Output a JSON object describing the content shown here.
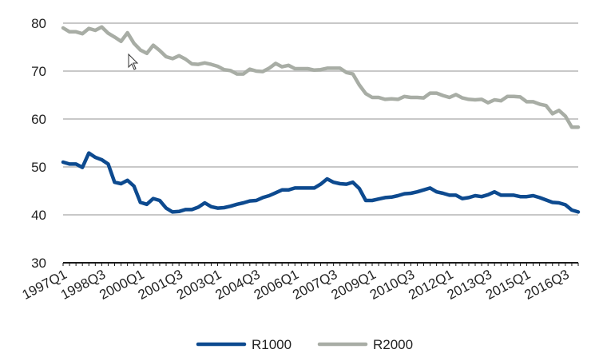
{
  "chart_data": {
    "type": "line",
    "title": "",
    "xlabel": "",
    "ylabel": "",
    "ylim": [
      30,
      80
    ],
    "yticks": [
      30,
      40,
      50,
      60,
      70,
      80
    ],
    "grid": true,
    "legend_position": "bottom",
    "x": [
      "1997Q1",
      "1997Q2",
      "1997Q3",
      "1997Q4",
      "1998Q1",
      "1998Q2",
      "1998Q3",
      "1998Q4",
      "1999Q1",
      "1999Q2",
      "1999Q3",
      "1999Q4",
      "2000Q1",
      "2000Q2",
      "2000Q3",
      "2000Q4",
      "2001Q1",
      "2001Q2",
      "2001Q3",
      "2001Q4",
      "2002Q1",
      "2002Q2",
      "2002Q3",
      "2002Q4",
      "2003Q1",
      "2003Q2",
      "2003Q3",
      "2003Q4",
      "2004Q1",
      "2004Q2",
      "2004Q3",
      "2004Q4",
      "2005Q1",
      "2005Q2",
      "2005Q3",
      "2005Q4",
      "2006Q1",
      "2006Q2",
      "2006Q3",
      "2006Q4",
      "2007Q1",
      "2007Q2",
      "2007Q3",
      "2007Q4",
      "2008Q1",
      "2008Q2",
      "2008Q3",
      "2008Q4",
      "2009Q1",
      "2009Q2",
      "2009Q3",
      "2009Q4",
      "2010Q1",
      "2010Q2",
      "2010Q3",
      "2010Q4",
      "2011Q1",
      "2011Q2",
      "2011Q3",
      "2011Q4",
      "2012Q1",
      "2012Q2",
      "2012Q3",
      "2012Q4",
      "2013Q1",
      "2013Q2",
      "2013Q3",
      "2013Q4",
      "2014Q1",
      "2014Q2",
      "2014Q3",
      "2014Q4",
      "2015Q1",
      "2015Q2",
      "2015Q3",
      "2015Q4",
      "2016Q1",
      "2016Q2",
      "2016Q3",
      "2016Q4",
      "2017Q1"
    ],
    "x_tick_labels": [
      "1997Q1",
      "1998Q3",
      "2000Q1",
      "2001Q3",
      "2003Q1",
      "2004Q3",
      "2006Q1",
      "2007Q3",
      "2009Q1",
      "2010Q3",
      "2012Q1",
      "2013Q3",
      "2015Q1",
      "2016Q3"
    ],
    "series": [
      {
        "name": "R1000",
        "color": "#0d4a8f",
        "values": [
          51.0,
          50.6,
          50.6,
          49.9,
          52.9,
          52.0,
          51.5,
          50.6,
          46.8,
          46.5,
          47.2,
          46.0,
          42.6,
          42.2,
          43.4,
          43.0,
          41.4,
          40.6,
          40.7,
          41.1,
          41.1,
          41.6,
          42.5,
          41.7,
          41.4,
          41.5,
          41.8,
          42.2,
          42.5,
          42.9,
          43.0,
          43.6,
          44.0,
          44.6,
          45.2,
          45.2,
          45.6,
          45.6,
          45.6,
          45.6,
          46.4,
          47.5,
          46.8,
          46.5,
          46.4,
          46.8,
          45.5,
          43.0,
          43.0,
          43.3,
          43.6,
          43.7,
          44.0,
          44.4,
          44.5,
          44.8,
          45.2,
          45.6,
          44.8,
          44.5,
          44.1,
          44.1,
          43.4,
          43.6,
          44.0,
          43.8,
          44.2,
          44.8,
          44.1,
          44.1,
          44.1,
          43.8,
          43.8,
          44.0,
          43.6,
          43.1,
          42.6,
          42.5,
          42.1,
          41.0,
          40.6
        ]
      },
      {
        "name": "R2000",
        "color": "#a8ada5",
        "values": [
          79.0,
          78.2,
          78.2,
          77.8,
          78.9,
          78.5,
          79.2,
          77.9,
          77.1,
          76.2,
          78.0,
          75.8,
          74.4,
          73.7,
          75.4,
          74.3,
          73.0,
          72.6,
          73.2,
          72.5,
          71.5,
          71.4,
          71.7,
          71.4,
          71.0,
          70.3,
          70.1,
          69.4,
          69.4,
          70.4,
          70.0,
          69.9,
          70.6,
          71.6,
          70.9,
          71.2,
          70.5,
          70.5,
          70.5,
          70.2,
          70.3,
          70.6,
          70.6,
          70.6,
          69.7,
          69.4,
          67.1,
          65.3,
          64.5,
          64.5,
          64.1,
          64.2,
          64.1,
          64.7,
          64.5,
          64.5,
          64.4,
          65.4,
          65.4,
          64.9,
          64.5,
          65.1,
          64.4,
          64.1,
          64.0,
          64.1,
          63.4,
          64.0,
          63.8,
          64.7,
          64.7,
          64.6,
          63.6,
          63.6,
          63.1,
          62.8,
          61.1,
          61.8,
          60.6,
          58.3,
          58.3
        ]
      }
    ]
  }
}
